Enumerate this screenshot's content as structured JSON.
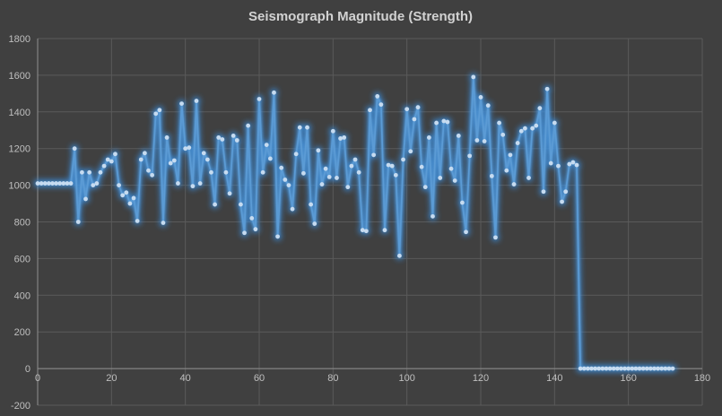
{
  "window": {
    "background_color": "#404040"
  },
  "chart_data": {
    "type": "line",
    "title": "Seismograph Magnitude (Strength)",
    "xlabel": "",
    "ylabel": "",
    "legend": false,
    "grid": true,
    "xlim": [
      0,
      180
    ],
    "ylim": [
      -200,
      1800
    ],
    "x_ticks": [
      0,
      20,
      40,
      60,
      80,
      100,
      120,
      140,
      160,
      180
    ],
    "y_ticks": [
      -200,
      0,
      200,
      400,
      600,
      800,
      1000,
      1200,
      1400,
      1600,
      1800
    ],
    "x_start": 0,
    "x_step": 1,
    "values": [
      1010,
      1010,
      1010,
      1010,
      1010,
      1010,
      1010,
      1010,
      1010,
      1010,
      1200,
      800,
      1070,
      925,
      1070,
      1000,
      1010,
      1070,
      1105,
      1140,
      1130,
      1170,
      1000,
      945,
      960,
      900,
      930,
      805,
      1140,
      1175,
      1080,
      1055,
      1390,
      1410,
      795,
      1260,
      1120,
      1135,
      1010,
      1445,
      1200,
      1205,
      995,
      1460,
      1010,
      1175,
      1140,
      1070,
      895,
      1260,
      1250,
      1070,
      955,
      1270,
      1245,
      895,
      740,
      1325,
      820,
      760,
      1470,
      1070,
      1220,
      1145,
      1505,
      720,
      1095,
      1030,
      1000,
      870,
      1170,
      1315,
      1065,
      1315,
      895,
      790,
      1190,
      1005,
      1090,
      1045,
      1295,
      1040,
      1255,
      1260,
      990,
      1105,
      1140,
      1070,
      755,
      750,
      1410,
      1165,
      1485,
      1440,
      755,
      1110,
      1105,
      1055,
      615,
      1140,
      1415,
      1185,
      1360,
      1425,
      1100,
      990,
      1260,
      830,
      1340,
      1040,
      1350,
      1345,
      1090,
      1025,
      1270,
      905,
      745,
      1160,
      1590,
      1245,
      1480,
      1240,
      1435,
      1050,
      715,
      1340,
      1275,
      1080,
      1165,
      1005,
      1230,
      1295,
      1310,
      1040,
      1310,
      1325,
      1420,
      965,
      1525,
      1120,
      1340,
      1105,
      910,
      965,
      1115,
      1125,
      1110,
      0,
      0,
      0,
      0,
      0,
      0,
      0,
      0,
      0,
      0,
      0,
      0,
      0,
      0,
      0,
      0,
      0,
      0,
      0,
      0,
      0,
      0,
      0,
      0,
      0,
      0
    ],
    "style": {
      "line_color": "#5b9bd5",
      "glow_color": "#3b8ede",
      "marker": "circle",
      "marker_fill": "#c6dbf0",
      "grid_color": "#5a5a5a",
      "axis_line_color": "#8f8f8f",
      "tick_label_color": "#bfbfbf",
      "title_color": "#d2d2d2",
      "plot_background": "#404040"
    }
  }
}
